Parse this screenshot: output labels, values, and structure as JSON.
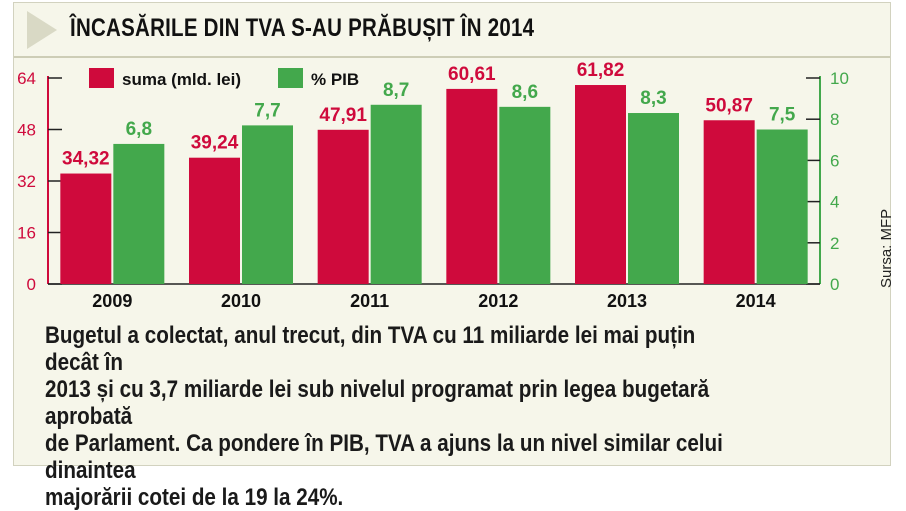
{
  "header": {
    "title": "ÎNCASĂRILE DIN TVA S-AU PRĂBUȘIT ÎN 2014"
  },
  "chart_data": {
    "type": "bar",
    "categories": [
      "2009",
      "2010",
      "2011",
      "2012",
      "2013",
      "2014"
    ],
    "series": [
      {
        "name": "suma (mld. lei)",
        "axis": "left",
        "color": "#cf0a3c",
        "values": [
          34.32,
          39.24,
          47.91,
          60.61,
          61.82,
          50.87
        ],
        "labels": [
          "34,32",
          "39,24",
          "47,91",
          "60,61",
          "61,82",
          "50,87"
        ]
      },
      {
        "name": "% PIB",
        "axis": "right",
        "color": "#43a84c",
        "values": [
          6.8,
          7.7,
          8.7,
          8.6,
          8.3,
          7.5
        ],
        "labels": [
          "6,8",
          "7,7",
          "8,7",
          "8,6",
          "8,3",
          "7,5"
        ]
      }
    ],
    "y_left": {
      "ticks": [
        "0",
        "16",
        "32",
        "48",
        "64"
      ],
      "range": [
        0,
        64
      ],
      "color": "#cf0a3c"
    },
    "y_right": {
      "ticks": [
        "0",
        "2",
        "4",
        "6",
        "8",
        "10"
      ],
      "range": [
        0,
        10
      ],
      "color": "#43a84c"
    },
    "legend_position": "top-left",
    "source": "Sursa: MFP"
  },
  "body_text": "Bugetul a colectat, anul trecut, din TVA cu 11 miliarde lei mai puțin decât în\n2013 și cu 3,7 miliarde lei sub nivelul programat prin legea bugetară aprobată\nde Parlament. Ca pondere în PIB, TVA a ajuns la un nivel similar celui dinaintea\nmajorării cotei de la 19 la 24%."
}
